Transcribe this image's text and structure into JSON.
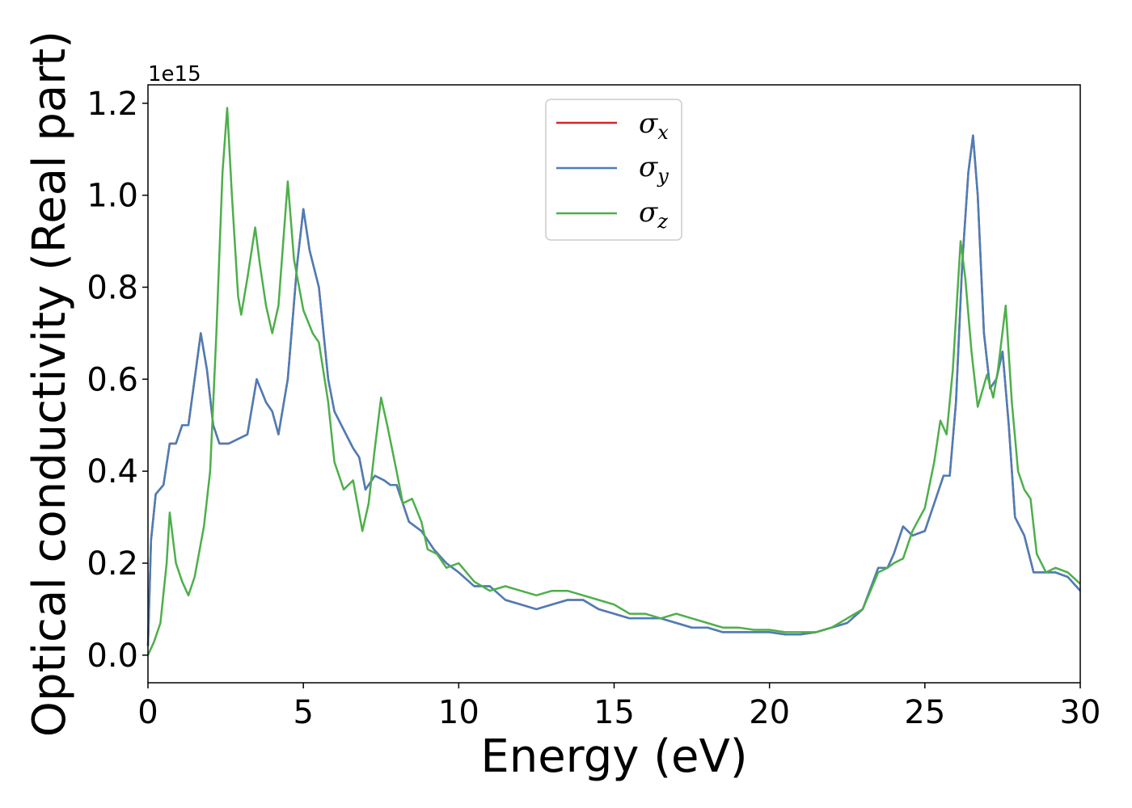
{
  "chart_data": {
    "type": "line",
    "title": "",
    "xlabel": "Energy (eV)",
    "ylabel": "Optical conductivity (Real part)",
    "y_offset_label": "1e15",
    "xlim": [
      0,
      30
    ],
    "ylim": [
      -0.06,
      1.24
    ],
    "x_ticks": [
      0,
      5,
      10,
      15,
      20,
      25,
      30
    ],
    "x_tick_labels": [
      "0",
      "5",
      "10",
      "15",
      "20",
      "25",
      "30"
    ],
    "y_ticks": [
      0.0,
      0.2,
      0.4,
      0.6,
      0.8,
      1.0,
      1.2
    ],
    "y_tick_labels": [
      "0.0",
      "0.2",
      "0.4",
      "0.6",
      "0.8",
      "1.0",
      "1.2"
    ],
    "grid": false,
    "legend_position": "top-center",
    "series": [
      {
        "name": "σ",
        "sub": "x",
        "color": "#d62728",
        "points": [
          [
            0,
            0.02
          ],
          [
            0.1,
            0.25
          ],
          [
            0.25,
            0.35
          ],
          [
            0.5,
            0.37
          ],
          [
            0.7,
            0.46
          ],
          [
            0.9,
            0.46
          ],
          [
            1.1,
            0.5
          ],
          [
            1.3,
            0.5
          ],
          [
            1.5,
            0.6
          ],
          [
            1.7,
            0.7
          ],
          [
            1.9,
            0.62
          ],
          [
            2.1,
            0.5
          ],
          [
            2.3,
            0.46
          ],
          [
            2.6,
            0.46
          ],
          [
            2.9,
            0.47
          ],
          [
            3.2,
            0.48
          ],
          [
            3.5,
            0.6
          ],
          [
            3.8,
            0.55
          ],
          [
            4.0,
            0.53
          ],
          [
            4.2,
            0.48
          ],
          [
            4.5,
            0.6
          ],
          [
            4.8,
            0.85
          ],
          [
            5.0,
            0.97
          ],
          [
            5.2,
            0.88
          ],
          [
            5.5,
            0.8
          ],
          [
            5.8,
            0.6
          ],
          [
            6.0,
            0.53
          ],
          [
            6.3,
            0.49
          ],
          [
            6.6,
            0.45
          ],
          [
            6.8,
            0.43
          ],
          [
            7.0,
            0.36
          ],
          [
            7.3,
            0.39
          ],
          [
            7.6,
            0.38
          ],
          [
            7.8,
            0.37
          ],
          [
            8.0,
            0.37
          ],
          [
            8.4,
            0.29
          ],
          [
            8.8,
            0.27
          ],
          [
            9.2,
            0.23
          ],
          [
            9.6,
            0.2
          ],
          [
            10.0,
            0.18
          ],
          [
            10.5,
            0.15
          ],
          [
            11.0,
            0.15
          ],
          [
            11.5,
            0.12
          ],
          [
            12.0,
            0.11
          ],
          [
            12.5,
            0.1
          ],
          [
            13.0,
            0.11
          ],
          [
            13.5,
            0.12
          ],
          [
            14.0,
            0.12
          ],
          [
            14.5,
            0.1
          ],
          [
            15.0,
            0.09
          ],
          [
            15.5,
            0.08
          ],
          [
            16.0,
            0.08
          ],
          [
            16.5,
            0.08
          ],
          [
            17.0,
            0.07
          ],
          [
            17.5,
            0.06
          ],
          [
            18.0,
            0.06
          ],
          [
            18.5,
            0.05
          ],
          [
            19.0,
            0.05
          ],
          [
            19.5,
            0.05
          ],
          [
            20.0,
            0.05
          ],
          [
            20.5,
            0.045
          ],
          [
            21.0,
            0.045
          ],
          [
            21.5,
            0.05
          ],
          [
            22.0,
            0.06
          ],
          [
            22.5,
            0.07
          ],
          [
            23.0,
            0.1
          ],
          [
            23.5,
            0.19
          ],
          [
            23.8,
            0.19
          ],
          [
            24.0,
            0.22
          ],
          [
            24.3,
            0.28
          ],
          [
            24.6,
            0.26
          ],
          [
            25.0,
            0.27
          ],
          [
            25.3,
            0.33
          ],
          [
            25.6,
            0.39
          ],
          [
            25.8,
            0.39
          ],
          [
            26.0,
            0.55
          ],
          [
            26.2,
            0.85
          ],
          [
            26.4,
            1.05
          ],
          [
            26.55,
            1.13
          ],
          [
            26.7,
            1.0
          ],
          [
            26.9,
            0.7
          ],
          [
            27.1,
            0.58
          ],
          [
            27.3,
            0.6
          ],
          [
            27.5,
            0.66
          ],
          [
            27.7,
            0.5
          ],
          [
            27.9,
            0.3
          ],
          [
            28.2,
            0.26
          ],
          [
            28.5,
            0.18
          ],
          [
            28.8,
            0.18
          ],
          [
            29.2,
            0.18
          ],
          [
            29.6,
            0.17
          ],
          [
            30,
            0.14
          ]
        ]
      },
      {
        "name": "σ",
        "sub": "y",
        "color": "#4a7eb8",
        "points": [
          [
            0,
            0.02
          ],
          [
            0.1,
            0.25
          ],
          [
            0.25,
            0.35
          ],
          [
            0.5,
            0.37
          ],
          [
            0.7,
            0.46
          ],
          [
            0.9,
            0.46
          ],
          [
            1.1,
            0.5
          ],
          [
            1.3,
            0.5
          ],
          [
            1.5,
            0.6
          ],
          [
            1.7,
            0.7
          ],
          [
            1.9,
            0.62
          ],
          [
            2.1,
            0.5
          ],
          [
            2.3,
            0.46
          ],
          [
            2.6,
            0.46
          ],
          [
            2.9,
            0.47
          ],
          [
            3.2,
            0.48
          ],
          [
            3.5,
            0.6
          ],
          [
            3.8,
            0.55
          ],
          [
            4.0,
            0.53
          ],
          [
            4.2,
            0.48
          ],
          [
            4.5,
            0.6
          ],
          [
            4.8,
            0.85
          ],
          [
            5.0,
            0.97
          ],
          [
            5.2,
            0.88
          ],
          [
            5.5,
            0.8
          ],
          [
            5.8,
            0.6
          ],
          [
            6.0,
            0.53
          ],
          [
            6.3,
            0.49
          ],
          [
            6.6,
            0.45
          ],
          [
            6.8,
            0.43
          ],
          [
            7.0,
            0.36
          ],
          [
            7.3,
            0.39
          ],
          [
            7.6,
            0.38
          ],
          [
            7.8,
            0.37
          ],
          [
            8.0,
            0.37
          ],
          [
            8.4,
            0.29
          ],
          [
            8.8,
            0.27
          ],
          [
            9.2,
            0.23
          ],
          [
            9.6,
            0.2
          ],
          [
            10.0,
            0.18
          ],
          [
            10.5,
            0.15
          ],
          [
            11.0,
            0.15
          ],
          [
            11.5,
            0.12
          ],
          [
            12.0,
            0.11
          ],
          [
            12.5,
            0.1
          ],
          [
            13.0,
            0.11
          ],
          [
            13.5,
            0.12
          ],
          [
            14.0,
            0.12
          ],
          [
            14.5,
            0.1
          ],
          [
            15.0,
            0.09
          ],
          [
            15.5,
            0.08
          ],
          [
            16.0,
            0.08
          ],
          [
            16.5,
            0.08
          ],
          [
            17.0,
            0.07
          ],
          [
            17.5,
            0.06
          ],
          [
            18.0,
            0.06
          ],
          [
            18.5,
            0.05
          ],
          [
            19.0,
            0.05
          ],
          [
            19.5,
            0.05
          ],
          [
            20.0,
            0.05
          ],
          [
            20.5,
            0.045
          ],
          [
            21.0,
            0.045
          ],
          [
            21.5,
            0.05
          ],
          [
            22.0,
            0.06
          ],
          [
            22.5,
            0.07
          ],
          [
            23.0,
            0.1
          ],
          [
            23.5,
            0.19
          ],
          [
            23.8,
            0.19
          ],
          [
            24.0,
            0.22
          ],
          [
            24.3,
            0.28
          ],
          [
            24.6,
            0.26
          ],
          [
            25.0,
            0.27
          ],
          [
            25.3,
            0.33
          ],
          [
            25.6,
            0.39
          ],
          [
            25.8,
            0.39
          ],
          [
            26.0,
            0.55
          ],
          [
            26.2,
            0.85
          ],
          [
            26.4,
            1.05
          ],
          [
            26.55,
            1.13
          ],
          [
            26.7,
            1.0
          ],
          [
            26.9,
            0.7
          ],
          [
            27.1,
            0.58
          ],
          [
            27.3,
            0.6
          ],
          [
            27.5,
            0.66
          ],
          [
            27.7,
            0.5
          ],
          [
            27.9,
            0.3
          ],
          [
            28.2,
            0.26
          ],
          [
            28.5,
            0.18
          ],
          [
            28.8,
            0.18
          ],
          [
            29.2,
            0.18
          ],
          [
            29.6,
            0.17
          ],
          [
            30,
            0.14
          ]
        ]
      },
      {
        "name": "σ",
        "sub": "z",
        "color": "#4daf4a",
        "points": [
          [
            0,
            0.0
          ],
          [
            0.2,
            0.03
          ],
          [
            0.4,
            0.07
          ],
          [
            0.6,
            0.2
          ],
          [
            0.7,
            0.31
          ],
          [
            0.9,
            0.2
          ],
          [
            1.1,
            0.16
          ],
          [
            1.3,
            0.13
          ],
          [
            1.5,
            0.17
          ],
          [
            1.8,
            0.28
          ],
          [
            2.0,
            0.4
          ],
          [
            2.2,
            0.7
          ],
          [
            2.4,
            1.05
          ],
          [
            2.55,
            1.19
          ],
          [
            2.7,
            1.0
          ],
          [
            2.9,
            0.78
          ],
          [
            3.0,
            0.74
          ],
          [
            3.2,
            0.82
          ],
          [
            3.45,
            0.93
          ],
          [
            3.6,
            0.85
          ],
          [
            3.8,
            0.76
          ],
          [
            4.0,
            0.7
          ],
          [
            4.2,
            0.76
          ],
          [
            4.5,
            1.03
          ],
          [
            4.7,
            0.86
          ],
          [
            5.0,
            0.75
          ],
          [
            5.3,
            0.7
          ],
          [
            5.5,
            0.68
          ],
          [
            5.8,
            0.55
          ],
          [
            6.0,
            0.42
          ],
          [
            6.3,
            0.36
          ],
          [
            6.6,
            0.38
          ],
          [
            6.9,
            0.27
          ],
          [
            7.1,
            0.33
          ],
          [
            7.3,
            0.45
          ],
          [
            7.5,
            0.56
          ],
          [
            7.7,
            0.5
          ],
          [
            8.0,
            0.4
          ],
          [
            8.2,
            0.33
          ],
          [
            8.5,
            0.34
          ],
          [
            8.8,
            0.29
          ],
          [
            9.0,
            0.23
          ],
          [
            9.3,
            0.22
          ],
          [
            9.6,
            0.19
          ],
          [
            10.0,
            0.2
          ],
          [
            10.5,
            0.16
          ],
          [
            11.0,
            0.14
          ],
          [
            11.5,
            0.15
          ],
          [
            12.0,
            0.14
          ],
          [
            12.5,
            0.13
          ],
          [
            13.0,
            0.14
          ],
          [
            13.5,
            0.14
          ],
          [
            14.0,
            0.13
          ],
          [
            14.5,
            0.12
          ],
          [
            15.0,
            0.11
          ],
          [
            15.5,
            0.09
          ],
          [
            16.0,
            0.09
          ],
          [
            16.5,
            0.08
          ],
          [
            17.0,
            0.09
          ],
          [
            17.5,
            0.08
          ],
          [
            18.0,
            0.07
          ],
          [
            18.5,
            0.06
          ],
          [
            19.0,
            0.06
          ],
          [
            19.5,
            0.055
          ],
          [
            20.0,
            0.055
          ],
          [
            20.5,
            0.05
          ],
          [
            21.0,
            0.05
          ],
          [
            21.5,
            0.05
          ],
          [
            22.0,
            0.06
          ],
          [
            22.5,
            0.08
          ],
          [
            23.0,
            0.1
          ],
          [
            23.5,
            0.18
          ],
          [
            23.8,
            0.19
          ],
          [
            24.0,
            0.2
          ],
          [
            24.3,
            0.21
          ],
          [
            24.6,
            0.27
          ],
          [
            25.0,
            0.32
          ],
          [
            25.3,
            0.42
          ],
          [
            25.5,
            0.51
          ],
          [
            25.7,
            0.48
          ],
          [
            25.9,
            0.62
          ],
          [
            26.15,
            0.9
          ],
          [
            26.3,
            0.82
          ],
          [
            26.5,
            0.66
          ],
          [
            26.7,
            0.54
          ],
          [
            27.0,
            0.61
          ],
          [
            27.2,
            0.56
          ],
          [
            27.35,
            0.62
          ],
          [
            27.6,
            0.76
          ],
          [
            27.8,
            0.55
          ],
          [
            28.0,
            0.4
          ],
          [
            28.2,
            0.36
          ],
          [
            28.4,
            0.34
          ],
          [
            28.6,
            0.22
          ],
          [
            28.9,
            0.18
          ],
          [
            29.2,
            0.19
          ],
          [
            29.6,
            0.18
          ],
          [
            30,
            0.155
          ]
        ]
      }
    ]
  }
}
